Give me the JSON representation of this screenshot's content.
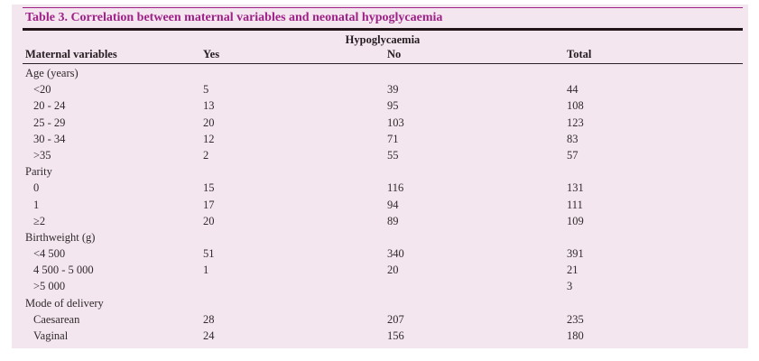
{
  "title": {
    "text": "Table 3. Correlation between maternal variables and neonatal hypoglycaemia"
  },
  "table": {
    "span_header": "Hypoglycaemia",
    "columns": {
      "variable": "Maternal variables",
      "yes": "Yes",
      "no": "No",
      "total": "Total"
    },
    "rows": [
      {
        "type": "section",
        "label": "Age (years)",
        "yes": "",
        "no": "",
        "total": ""
      },
      {
        "type": "item",
        "label": "<20",
        "yes": "5",
        "no": "39",
        "total": "44"
      },
      {
        "type": "item",
        "label": "20 - 24",
        "yes": "13",
        "no": "95",
        "total": "108"
      },
      {
        "type": "item",
        "label": "25 - 29",
        "yes": "20",
        "no": "103",
        "total": "123"
      },
      {
        "type": "item",
        "label": "30 - 34",
        "yes": "12",
        "no": "71",
        "total": "83"
      },
      {
        "type": "item",
        "label": ">35",
        "yes": "2",
        "no": "55",
        "total": "57"
      },
      {
        "type": "section",
        "label": "Parity",
        "yes": "",
        "no": "",
        "total": ""
      },
      {
        "type": "item",
        "label": "0",
        "yes": "15",
        "no": "116",
        "total": "131"
      },
      {
        "type": "item",
        "label": "1",
        "yes": "17",
        "no": "94",
        "total": "111"
      },
      {
        "type": "item",
        "label": "≥2",
        "yes": "20",
        "no": "89",
        "total": "109"
      },
      {
        "type": "section",
        "label": "Birthweight (g)",
        "yes": "",
        "no": "",
        "total": ""
      },
      {
        "type": "item",
        "label": "<4 500",
        "yes": "51",
        "no": "340",
        "total": "391"
      },
      {
        "type": "item",
        "label": "4 500 - 5 000",
        "yes": "1",
        "no": "20",
        "total": "21"
      },
      {
        "type": "item",
        "label": ">5 000",
        "yes": "",
        "no": "",
        "total": "3"
      },
      {
        "type": "section",
        "label": "Mode of delivery",
        "yes": "",
        "no": "",
        "total": ""
      },
      {
        "type": "item",
        "label": "Caesarean",
        "yes": "28",
        "no": "207",
        "total": "235"
      },
      {
        "type": "item",
        "label": "Vaginal",
        "yes": "24",
        "no": "156",
        "total": "180"
      }
    ]
  },
  "colors": {
    "panel_background": "#f3e6ee",
    "title_accent": "#9e2187",
    "thick_rule": "#221419",
    "header_rule": "#2a2126",
    "body_text": "#31292d"
  }
}
